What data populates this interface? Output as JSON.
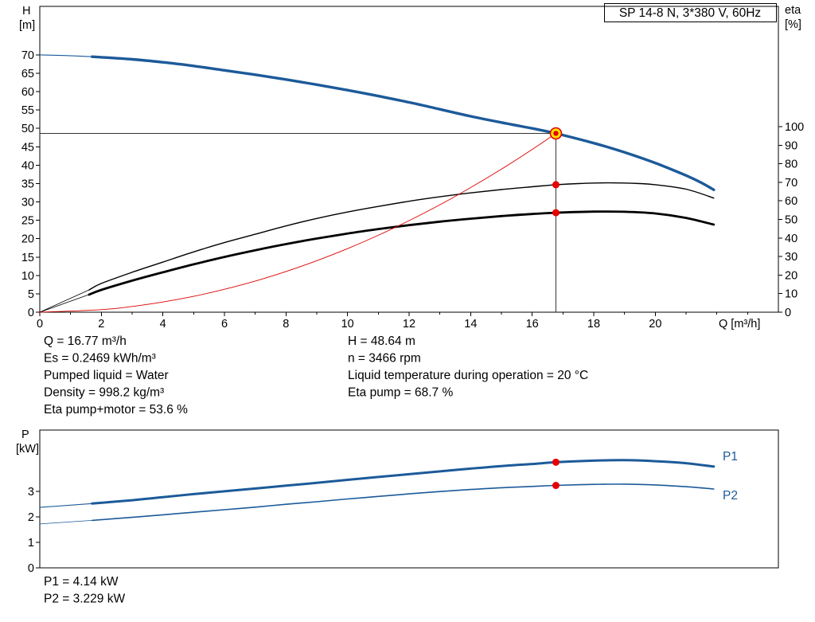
{
  "colors": {
    "curve_blue": "#1c5a99",
    "curve_black": "#000000",
    "curve_red": "#dd0000",
    "dot_red": "#e60000",
    "marker_yellow": "#ffe000"
  },
  "info": {
    "left": [
      "Q = 16.77 m³/h",
      "Es = 0.2469 kWh/m³",
      "Pumped liquid = Water",
      "Density = 998.2 kg/m³",
      "Eta pump+motor = 53.6 %"
    ],
    "right": [
      "H = 48.64 m",
      "n = 3466 rpm",
      "Liquid temperature during operation = 20 °C",
      "Eta pump = 68.7 %"
    ]
  },
  "power_results": [
    "P1 = 4.14 kW",
    "P2 = 3.229 kW"
  ],
  "chart_data": [
    {
      "type": "line",
      "title": "SP 14-8 N, 3*380 V, 60Hz",
      "xlabel": "Q [m³/h]",
      "ylabel_left": "H [m]",
      "ylabel_right": "eta [%]",
      "ylabel_left_lines": [
        "H",
        "[m]"
      ],
      "ylabel_right_lines": [
        "eta",
        "[%]"
      ],
      "xlim": [
        0,
        24
      ],
      "ylim_left": [
        0,
        83.2
      ],
      "ylim_right": [
        0,
        164.8
      ],
      "x_ticks": [
        0,
        2,
        4,
        6,
        8,
        10,
        12,
        14,
        16,
        18,
        20
      ],
      "y_ticks_left": [
        0,
        5,
        10,
        15,
        20,
        25,
        30,
        35,
        40,
        45,
        50,
        55,
        60,
        65,
        70
      ],
      "y_ticks_right": [
        0,
        10,
        20,
        30,
        40,
        50,
        60,
        70,
        80,
        90,
        100
      ],
      "grid": false,
      "duty_point": {
        "Q": 16.77,
        "H": 48.64,
        "eta_pump": 68.7,
        "eta_pump_motor": 53.6
      },
      "series": [
        {
          "name": "H-Q curve",
          "axis": "left",
          "color": "#1c5a99",
          "width": 3.4,
          "lead_width": 1.1,
          "split_q": 1.7,
          "points": [
            [
              0,
              70
            ],
            [
              0.9,
              69.8
            ],
            [
              1.7,
              69.5
            ],
            [
              3,
              68.8
            ],
            [
              4,
              68.0
            ],
            [
              5,
              67.0
            ],
            [
              6,
              65.8
            ],
            [
              7,
              64.6
            ],
            [
              8,
              63.3
            ],
            [
              9,
              61.9
            ],
            [
              10,
              60.4
            ],
            [
              11,
              58.8
            ],
            [
              12,
              57.1
            ],
            [
              13,
              55.2
            ],
            [
              14,
              53.3
            ],
            [
              15,
              51.6
            ],
            [
              16,
              50.0
            ],
            [
              16.77,
              48.64
            ],
            [
              18,
              46.0
            ],
            [
              19,
              43.5
            ],
            [
              20,
              40.6
            ],
            [
              21,
              37.2
            ],
            [
              21.5,
              35.2
            ],
            [
              21.9,
              33.3
            ]
          ]
        },
        {
          "name": "Eta pump",
          "axis": "right",
          "color": "#000000",
          "width": 1.4,
          "lead_width": 0.8,
          "split_q": 1.6,
          "points": [
            [
              0,
              0
            ],
            [
              1.6,
              12
            ],
            [
              2,
              15.5
            ],
            [
              3,
              21.5
            ],
            [
              4,
              27
            ],
            [
              5,
              32.5
            ],
            [
              6,
              37.5
            ],
            [
              7,
              42
            ],
            [
              8,
              46.5
            ],
            [
              9,
              50.5
            ],
            [
              10,
              54
            ],
            [
              11,
              57
            ],
            [
              12,
              59.8
            ],
            [
              13,
              62.2
            ],
            [
              14,
              64.3
            ],
            [
              15,
              66.1
            ],
            [
              16,
              67.6
            ],
            [
              16.77,
              68.7
            ],
            [
              17.5,
              69.3
            ],
            [
              18.5,
              69.7
            ],
            [
              19.5,
              69.3
            ],
            [
              20,
              68.7
            ],
            [
              21,
              66.3
            ],
            [
              21.9,
              61.5
            ]
          ]
        },
        {
          "name": "Eta pump+motor",
          "axis": "right",
          "color": "#000000",
          "width": 2.8,
          "lead_width": 0.8,
          "split_q": 1.6,
          "points": [
            [
              0,
              0
            ],
            [
              1.6,
              9.5
            ],
            [
              2,
              12
            ],
            [
              3,
              17
            ],
            [
              4,
              21.5
            ],
            [
              5,
              25.8
            ],
            [
              6,
              29.8
            ],
            [
              7,
              33.4
            ],
            [
              8,
              36.7
            ],
            [
              9,
              39.7
            ],
            [
              10,
              42.4
            ],
            [
              11,
              44.8
            ],
            [
              12,
              46.9
            ],
            [
              13,
              48.8
            ],
            [
              14,
              50.4
            ],
            [
              15,
              51.8
            ],
            [
              16,
              52.9
            ],
            [
              16.77,
              53.6
            ],
            [
              18,
              54.2
            ],
            [
              19,
              54.1
            ],
            [
              20,
              53.2
            ],
            [
              21,
              50.8
            ],
            [
              21.9,
              47.2
            ]
          ]
        },
        {
          "name": "System curve",
          "axis": "left",
          "color": "#dd0000",
          "width": 0.9,
          "points": [
            [
              0,
              0
            ],
            [
              2,
              0.69
            ],
            [
              3,
              1.56
            ],
            [
              4,
              2.77
            ],
            [
              5,
              4.32
            ],
            [
              6,
              6.23
            ],
            [
              7,
              8.48
            ],
            [
              8,
              11.07
            ],
            [
              9,
              14.01
            ],
            [
              10,
              17.3
            ],
            [
              11,
              20.93
            ],
            [
              12,
              24.91
            ],
            [
              13,
              29.23
            ],
            [
              14,
              33.9
            ],
            [
              15,
              38.92
            ],
            [
              16,
              44.28
            ],
            [
              16.77,
              48.64
            ]
          ]
        }
      ]
    },
    {
      "type": "line",
      "title": "",
      "xlabel": "",
      "ylabel": "P [kW]",
      "ylabel_lines": [
        "P",
        "[kW]"
      ],
      "xlim": [
        0,
        24
      ],
      "ylim": [
        0,
        5.4
      ],
      "y_ticks": [
        0,
        1,
        2,
        3
      ],
      "grid": false,
      "duty_point": {
        "Q": 16.77,
        "P1": 4.14,
        "P2": 3.229
      },
      "series": [
        {
          "name": "P1",
          "color": "#1c5a99",
          "width": 3.0,
          "lead_width": 1.1,
          "split_q": 1.7,
          "points": [
            [
              0,
              2.37
            ],
            [
              1.7,
              2.52
            ],
            [
              3,
              2.65
            ],
            [
              4,
              2.77
            ],
            [
              5,
              2.89
            ],
            [
              6,
              3.0
            ],
            [
              7,
              3.11
            ],
            [
              8,
              3.22
            ],
            [
              9,
              3.33
            ],
            [
              10,
              3.45
            ],
            [
              11,
              3.56
            ],
            [
              12,
              3.67
            ],
            [
              13,
              3.78
            ],
            [
              14,
              3.89
            ],
            [
              15,
              3.99
            ],
            [
              16,
              4.07
            ],
            [
              16.77,
              4.14
            ],
            [
              18,
              4.2
            ],
            [
              19,
              4.22
            ],
            [
              20,
              4.18
            ],
            [
              21,
              4.1
            ],
            [
              21.9,
              3.97
            ]
          ]
        },
        {
          "name": "P2",
          "color": "#1c5a99",
          "width": 1.6,
          "lead_width": 0.8,
          "split_q": 1.7,
          "points": [
            [
              0,
              1.72
            ],
            [
              1.7,
              1.86
            ],
            [
              3,
              1.98
            ],
            [
              4,
              2.08
            ],
            [
              5,
              2.18
            ],
            [
              6,
              2.28
            ],
            [
              7,
              2.38
            ],
            [
              8,
              2.49
            ],
            [
              9,
              2.59
            ],
            [
              10,
              2.7
            ],
            [
              11,
              2.8
            ],
            [
              12,
              2.9
            ],
            [
              13,
              2.99
            ],
            [
              14,
              3.07
            ],
            [
              15,
              3.14
            ],
            [
              16,
              3.19
            ],
            [
              16.77,
              3.23
            ],
            [
              18,
              3.27
            ],
            [
              19,
              3.28
            ],
            [
              20,
              3.25
            ],
            [
              21,
              3.18
            ],
            [
              21.9,
              3.09
            ]
          ]
        }
      ]
    }
  ]
}
